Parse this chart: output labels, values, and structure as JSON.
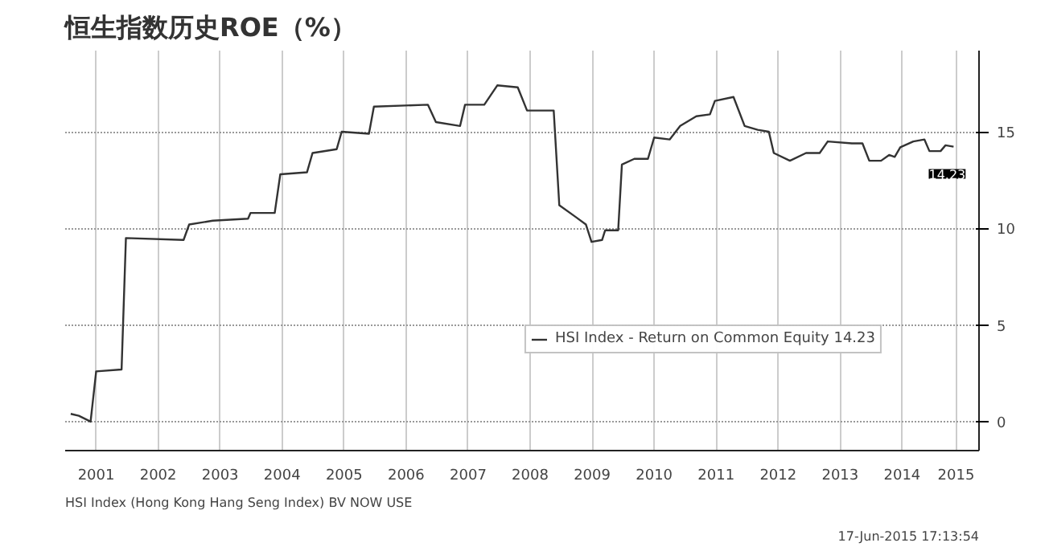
{
  "chart_data": {
    "type": "line",
    "title": "恒生指数历史ROE（%）",
    "x": [
      2001.09,
      2001.22,
      2001.41,
      2001.5,
      2001.91,
      2001.98,
      2002.91,
      2003.0,
      2003.38,
      2003.95,
      2003.99,
      2004.38,
      2004.47,
      2004.9,
      2004.99,
      2005.38,
      2005.46,
      2005.9,
      2005.98,
      2006.85,
      2006.98,
      2007.37,
      2007.45,
      2007.76,
      2007.97,
      2008.3,
      2008.45,
      2008.88,
      2008.97,
      2009.23,
      2009.4,
      2009.49,
      2009.66,
      2009.71,
      2009.92,
      2009.98,
      2010.18,
      2010.4,
      2010.5,
      2010.75,
      2010.92,
      2011.18,
      2011.4,
      2011.48,
      2011.78,
      2011.96,
      2012.17,
      2012.35,
      2012.43,
      2012.69,
      2012.95,
      2013.17,
      2013.3,
      2013.69,
      2013.86,
      2013.97,
      2014.16,
      2014.29,
      2014.38,
      2014.47,
      2014.68,
      2014.86,
      2014.94,
      2015.12,
      2015.2,
      2015.33
    ],
    "series": [
      {
        "name": "HSI Index - Return on Common Equity 14.23",
        "color": "#333333",
        "values": [
          0.4,
          0.3,
          0.0,
          2.6,
          2.7,
          9.5,
          9.4,
          10.2,
          10.4,
          10.5,
          10.8,
          10.8,
          12.8,
          12.9,
          13.9,
          14.1,
          15.0,
          14.9,
          16.3,
          16.4,
          15.5,
          15.3,
          16.4,
          16.4,
          17.4,
          17.3,
          16.1,
          16.1,
          11.2,
          10.6,
          10.2,
          9.3,
          9.4,
          9.9,
          9.9,
          13.3,
          13.6,
          13.6,
          14.7,
          14.6,
          15.3,
          15.8,
          15.9,
          16.6,
          16.8,
          15.3,
          15.1,
          15.0,
          13.9,
          13.5,
          13.9,
          13.9,
          14.5,
          14.4,
          14.4,
          13.5,
          13.5,
          13.8,
          13.7,
          14.2,
          14.5,
          14.6,
          14.0,
          14.0,
          14.3,
          14.23
        ]
      }
    ],
    "xlim": [
      2001,
      2015.74
    ],
    "ylim": [
      -1.5,
      19.2
    ],
    "xticks": [
      {
        "value": 2001.5,
        "label": "2001"
      },
      {
        "value": 2002.5,
        "label": "2002"
      },
      {
        "value": 2003.5,
        "label": "2003"
      },
      {
        "value": 2004.5,
        "label": "2004"
      },
      {
        "value": 2005.5,
        "label": "2005"
      },
      {
        "value": 2006.5,
        "label": "2006"
      },
      {
        "value": 2007.5,
        "label": "2007"
      },
      {
        "value": 2008.5,
        "label": "2008"
      },
      {
        "value": 2009.5,
        "label": "2009"
      },
      {
        "value": 2010.5,
        "label": "2010"
      },
      {
        "value": 2011.5,
        "label": "2011"
      },
      {
        "value": 2012.5,
        "label": "2012"
      },
      {
        "value": 2013.5,
        "label": "2013"
      },
      {
        "value": 2014.5,
        "label": "2014"
      },
      {
        "value": 2015.37,
        "label": "2015"
      }
    ],
    "yticks": [
      0,
      5,
      10,
      15
    ],
    "grid": true,
    "legend": "bottom right",
    "line_style": "solid",
    "annotations": [
      {
        "text": "14.23",
        "x": 2015.33,
        "y": 14.23
      },
      "HSI Index (Hong Kong Hang Seng Index) BV NOW USE",
      "17-Jun-2015 17:13:54"
    ]
  }
}
